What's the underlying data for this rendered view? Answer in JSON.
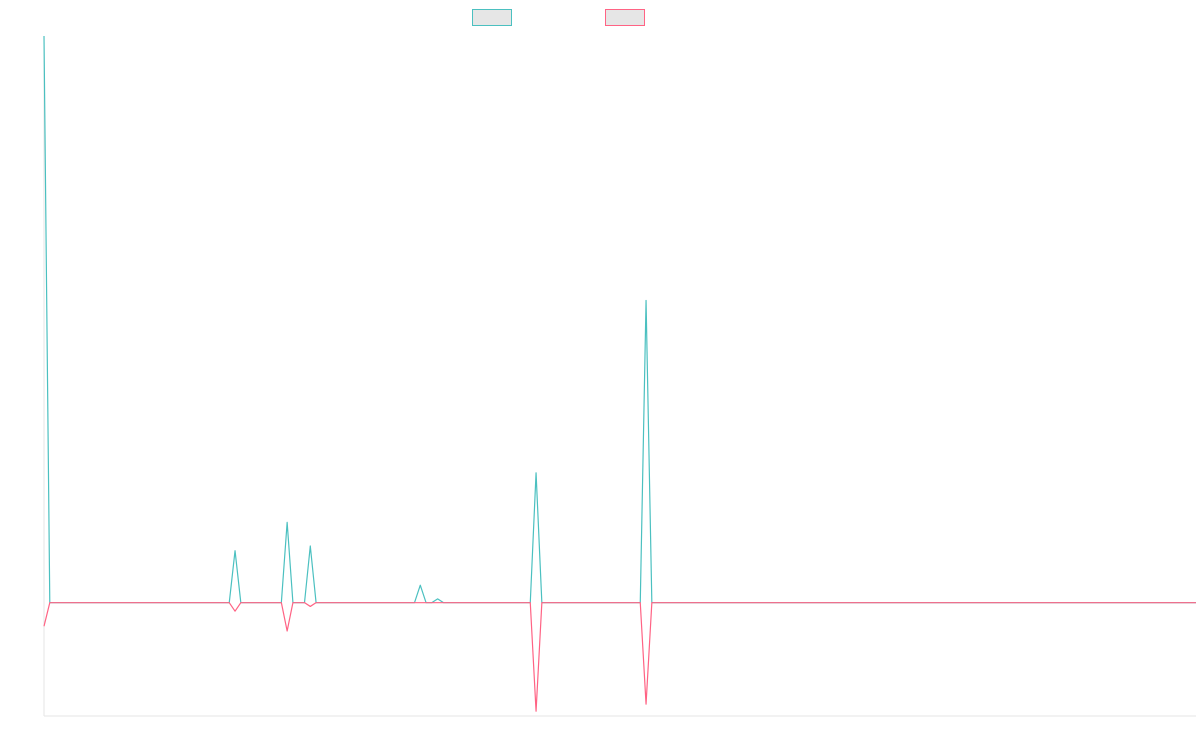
{
  "chart_data": {
    "type": "line",
    "title": "",
    "xlabel": "",
    "ylabel": "",
    "legend_position": "top-center",
    "grid": false,
    "x_count": 200,
    "ylim": [
      -24,
      120
    ],
    "series": [
      {
        "color": "#4bc0c0",
        "fill": "#e6e6e6",
        "points": [
          [
            0,
            120
          ],
          [
            1,
            0
          ],
          [
            32,
            0
          ],
          [
            33,
            11
          ],
          [
            34,
            0
          ],
          [
            41,
            0
          ],
          [
            42,
            17
          ],
          [
            43,
            0
          ],
          [
            45,
            0
          ],
          [
            46,
            12
          ],
          [
            47,
            0
          ],
          [
            64,
            0
          ],
          [
            65,
            3.7
          ],
          [
            66,
            0
          ],
          [
            67,
            0
          ],
          [
            68,
            0.8
          ],
          [
            69,
            0
          ],
          [
            84,
            0
          ],
          [
            85,
            27.5
          ],
          [
            86,
            0
          ],
          [
            103,
            0
          ],
          [
            104,
            64
          ],
          [
            105,
            0
          ],
          [
            199,
            0
          ]
        ]
      },
      {
        "color": "#ff6384",
        "fill": "#e6e6e6",
        "points": [
          [
            0,
            -5
          ],
          [
            1,
            0
          ],
          [
            32,
            0
          ],
          [
            33,
            -1.8
          ],
          [
            34,
            0
          ],
          [
            41,
            0
          ],
          [
            42,
            -6
          ],
          [
            43,
            0
          ],
          [
            45,
            0
          ],
          [
            46,
            -0.8
          ],
          [
            47,
            0
          ],
          [
            84,
            0
          ],
          [
            85,
            -23
          ],
          [
            86,
            0
          ],
          [
            103,
            0
          ],
          [
            104,
            -21.5
          ],
          [
            105,
            0
          ],
          [
            199,
            0
          ]
        ]
      }
    ]
  }
}
